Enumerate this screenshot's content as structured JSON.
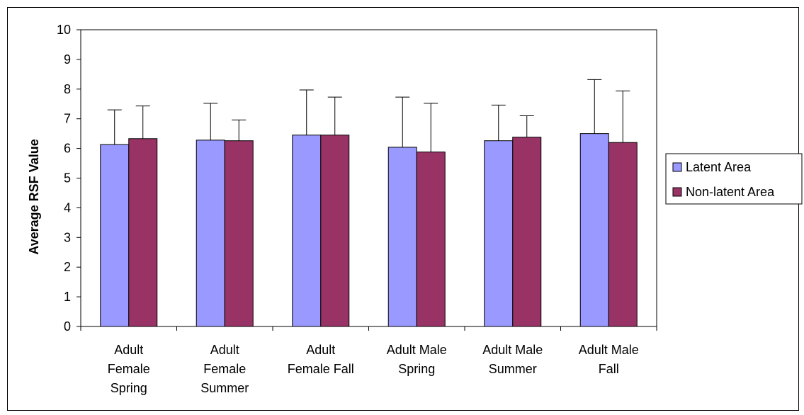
{
  "chart_data": {
    "type": "bar",
    "title": "",
    "xlabel": "",
    "ylabel": "Average RSF Value",
    "ylim": [
      0,
      10
    ],
    "yticks": [
      0,
      1,
      2,
      3,
      4,
      5,
      6,
      7,
      8,
      9,
      10
    ],
    "grid": false,
    "legend_position": "right",
    "categories": [
      [
        "Adult",
        "Female",
        "Spring"
      ],
      [
        "Adult",
        "Female",
        "Summer"
      ],
      [
        "Adult",
        "Female Fall"
      ],
      [
        "Adult Male",
        "Spring"
      ],
      [
        "Adult Male",
        "Summer"
      ],
      [
        "Adult Male",
        "Fall"
      ]
    ],
    "series": [
      {
        "name": "Latent Area",
        "color": "#9999ff",
        "values": [
          6.13,
          6.28,
          6.45,
          6.04,
          6.26,
          6.5
        ],
        "error_upper": [
          7.3,
          7.52,
          7.97,
          7.73,
          7.46,
          8.32
        ]
      },
      {
        "name": "Non-latent Area",
        "color": "#993366",
        "values": [
          6.33,
          6.26,
          6.45,
          5.88,
          6.38,
          6.2
        ],
        "error_upper": [
          7.43,
          6.96,
          7.73,
          7.52,
          7.1,
          7.94
        ]
      }
    ]
  }
}
